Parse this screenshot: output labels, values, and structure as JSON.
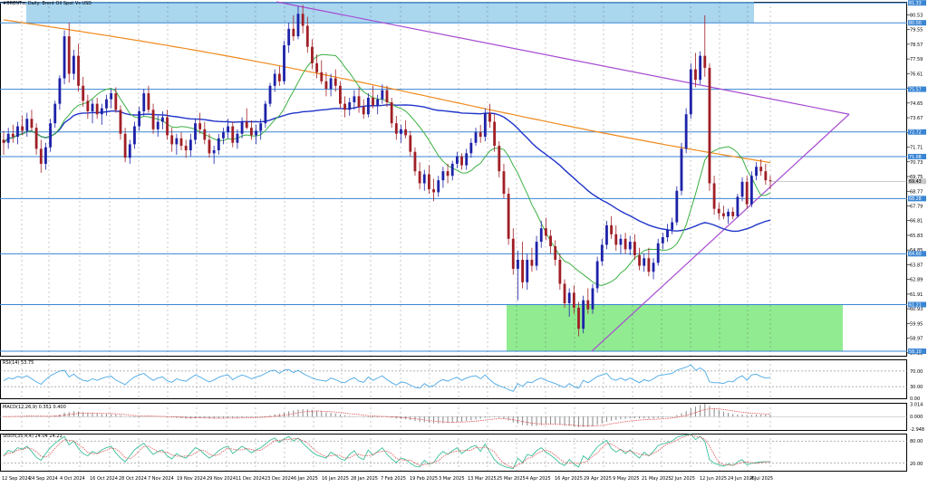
{
  "chart_data": {
    "type": "candlestick",
    "title": "#BRENT.s, Daily: Brent Oil Spot Vs USD",
    "colors": {
      "up": "#1d22a8",
      "down": "#a01f26",
      "ma_fast": "#3cb043",
      "ma_slow": "#1f35c9",
      "ma_200": "#f08a1c",
      "trendline": "#a74bd1",
      "level": "#3a86d4",
      "zone_top": "#8ec8e8",
      "zone_bottom": "#7ee77e",
      "rsi": "#4aa8e6",
      "macd_signal": "#e05050",
      "stoch_main": "#3cbf9c",
      "stoch_signal": "#e05050"
    },
    "x_labels": [
      "12 Sep 2024",
      "24 Sep 2024",
      "4 Oct 2024",
      "16 Oct 2024",
      "28 Oct 2024",
      "7 Nov 2024",
      "19 Nov 2024",
      "29 Nov 2024",
      "11 Dec 2024",
      "23 Dec 2024",
      "6 Jan 2025",
      "16 Jan 2025",
      "28 Jan 2025",
      "7 Feb 2025",
      "19 Feb 2025",
      "3 Mar 2025",
      "13 Mar 2025",
      "25 Mar 2025",
      "4 Apr 2025",
      "16 Apr 2025",
      "29 Apr 2025",
      "9 May 2025",
      "21 May 2025",
      "2 Jun 2025",
      "12 Jun 2025",
      "24 Jun 2025",
      "4 Jul 2025"
    ],
    "y_ticks": [
      "80.53",
      "79.55",
      "78.57",
      "77.59",
      "76.61",
      "75.63",
      "74.65",
      "73.67",
      "72.69",
      "71.71",
      "70.73",
      "69.75",
      "68.77",
      "67.79",
      "66.81",
      "65.83",
      "64.85",
      "63.87",
      "62.89",
      "61.91",
      "60.93",
      "59.95",
      "58.97",
      "57.99"
    ],
    "y_range": [
      57.8,
      81.4
    ],
    "levels": [
      {
        "value": "81.33",
        "price": 81.33
      },
      {
        "value": "80.00",
        "price": 80.0
      },
      {
        "value": "75.57",
        "price": 75.57
      },
      {
        "value": "72.72",
        "price": 72.72
      },
      {
        "value": "71.08",
        "price": 71.08
      },
      {
        "value": "68.28",
        "price": 68.28
      },
      {
        "value": "64.60",
        "price": 64.6
      },
      {
        "value": "61.21",
        "price": 61.21
      },
      {
        "value": "58.10",
        "price": 58.1
      }
    ],
    "current_price": {
      "value": "69.43",
      "price": 69.43
    },
    "zones": [
      {
        "name": "resistance-zone",
        "from": 80.0,
        "to": 81.4,
        "start_date": "23 Sep 2024",
        "end_date": "18 Jul 2025"
      },
      {
        "name": "support-zone",
        "from": 58.1,
        "to": 61.21,
        "start_date": "1 Apr 2025",
        "end_date": "18 Jul 2025"
      }
    ],
    "candles": [
      [
        72.2,
        72.8,
        71.2,
        72.0
      ],
      [
        72.0,
        73.0,
        71.6,
        72.6
      ],
      [
        72.6,
        73.2,
        72.0,
        72.4
      ],
      [
        72.4,
        73.4,
        71.9,
        73.1
      ],
      [
        73.1,
        73.8,
        72.5,
        72.8
      ],
      [
        72.8,
        74.0,
        72.4,
        73.6
      ],
      [
        73.6,
        74.2,
        72.8,
        73.0
      ],
      [
        73.0,
        73.3,
        71.2,
        71.6
      ],
      [
        71.6,
        72.2,
        70.0,
        70.6
      ],
      [
        70.6,
        72.0,
        70.2,
        71.7
      ],
      [
        71.7,
        73.6,
        71.4,
        73.3
      ],
      [
        73.3,
        74.8,
        73.0,
        74.6
      ],
      [
        74.6,
        76.5,
        74.2,
        76.3
      ],
      [
        76.3,
        79.5,
        75.9,
        79.1
      ],
      [
        79.1,
        80.0,
        76.0,
        76.6
      ],
      [
        76.6,
        78.2,
        76.2,
        77.8
      ],
      [
        77.8,
        78.6,
        75.4,
        75.8
      ],
      [
        75.8,
        76.4,
        74.4,
        74.8
      ],
      [
        74.8,
        75.2,
        73.6,
        74.1
      ],
      [
        74.1,
        74.9,
        73.3,
        74.6
      ],
      [
        74.6,
        75.0,
        73.6,
        73.9
      ],
      [
        73.9,
        74.6,
        73.2,
        74.3
      ],
      [
        74.3,
        75.2,
        73.8,
        74.9
      ],
      [
        74.9,
        75.6,
        74.3,
        75.3
      ],
      [
        75.3,
        75.7,
        74.0,
        74.2
      ],
      [
        74.2,
        74.5,
        72.2,
        72.6
      ],
      [
        72.6,
        73.0,
        70.7,
        71.0
      ],
      [
        71.0,
        72.2,
        70.6,
        71.9
      ],
      [
        71.9,
        73.4,
        71.6,
        73.1
      ],
      [
        73.1,
        74.4,
        72.8,
        74.1
      ],
      [
        74.1,
        75.6,
        73.8,
        75.3
      ],
      [
        75.3,
        75.8,
        74.0,
        74.2
      ],
      [
        74.2,
        74.6,
        72.6,
        72.9
      ],
      [
        72.9,
        73.8,
        72.4,
        73.4
      ],
      [
        73.4,
        74.1,
        72.9,
        73.7
      ],
      [
        73.7,
        74.2,
        72.2,
        72.5
      ],
      [
        72.5,
        73.0,
        71.4,
        71.9
      ],
      [
        71.9,
        72.6,
        71.2,
        72.3
      ],
      [
        72.3,
        72.7,
        71.5,
        71.8
      ],
      [
        71.8,
        72.2,
        71.0,
        71.5
      ],
      [
        71.5,
        72.6,
        71.1,
        72.2
      ],
      [
        72.2,
        73.6,
        71.9,
        73.3
      ],
      [
        73.3,
        74.0,
        72.6,
        72.9
      ],
      [
        72.9,
        73.4,
        71.9,
        72.2
      ],
      [
        72.2,
        72.6,
        71.0,
        71.3
      ],
      [
        71.3,
        71.8,
        70.6,
        71.5
      ],
      [
        71.5,
        72.6,
        71.2,
        72.3
      ],
      [
        72.3,
        73.0,
        71.9,
        72.7
      ],
      [
        72.7,
        73.6,
        72.3,
        73.1
      ],
      [
        73.1,
        73.4,
        71.7,
        72.0
      ],
      [
        72.0,
        72.9,
        71.6,
        72.6
      ],
      [
        72.6,
        73.7,
        72.3,
        73.4
      ],
      [
        73.4,
        74.3,
        72.9,
        73.0
      ],
      [
        73.0,
        73.5,
        72.2,
        72.5
      ],
      [
        72.5,
        73.2,
        71.9,
        72.8
      ],
      [
        72.8,
        73.6,
        72.2,
        73.3
      ],
      [
        73.3,
        74.8,
        73.0,
        74.6
      ],
      [
        74.6,
        76.0,
        74.4,
        75.8
      ],
      [
        75.8,
        76.9,
        75.4,
        76.6
      ],
      [
        76.6,
        77.1,
        75.8,
        76.1
      ],
      [
        76.1,
        78.8,
        75.9,
        78.5
      ],
      [
        78.5,
        80.0,
        78.0,
        79.6
      ],
      [
        79.6,
        80.5,
        78.8,
        79.1
      ],
      [
        79.1,
        81.1,
        78.9,
        80.6
      ],
      [
        80.6,
        81.2,
        79.3,
        79.8
      ],
      [
        79.8,
        80.4,
        78.0,
        78.4
      ],
      [
        78.4,
        78.9,
        76.9,
        77.3
      ],
      [
        77.3,
        77.9,
        76.3,
        76.7
      ],
      [
        76.7,
        77.5,
        75.9,
        76.1
      ],
      [
        76.1,
        76.7,
        75.1,
        75.6
      ],
      [
        75.6,
        76.6,
        75.1,
        76.3
      ],
      [
        76.3,
        76.9,
        75.4,
        75.8
      ],
      [
        75.8,
        76.1,
        74.3,
        74.6
      ],
      [
        74.6,
        75.1,
        73.7,
        74.2
      ],
      [
        74.2,
        75.0,
        73.8,
        74.7
      ],
      [
        74.7,
        75.5,
        74.2,
        75.1
      ],
      [
        75.1,
        75.7,
        74.0,
        74.4
      ],
      [
        74.4,
        74.9,
        73.6,
        73.9
      ],
      [
        73.9,
        75.3,
        73.7,
        75.0
      ],
      [
        75.0,
        75.8,
        74.3,
        74.5
      ],
      [
        74.5,
        75.2,
        73.9,
        74.9
      ],
      [
        74.9,
        75.9,
        74.6,
        75.5
      ],
      [
        75.5,
        75.8,
        74.4,
        74.7
      ],
      [
        74.7,
        75.0,
        73.0,
        73.3
      ],
      [
        73.3,
        73.8,
        72.2,
        72.6
      ],
      [
        72.6,
        73.2,
        72.0,
        72.9
      ],
      [
        72.9,
        73.5,
        72.3,
        72.5
      ],
      [
        72.5,
        72.8,
        71.1,
        71.4
      ],
      [
        71.4,
        71.7,
        69.8,
        70.1
      ],
      [
        70.1,
        70.7,
        68.9,
        69.3
      ],
      [
        69.3,
        70.2,
        68.8,
        69.9
      ],
      [
        69.9,
        70.5,
        68.6,
        68.9
      ],
      [
        68.9,
        69.6,
        68.1,
        68.7
      ],
      [
        68.7,
        69.8,
        68.4,
        69.5
      ],
      [
        69.5,
        70.4,
        69.0,
        70.1
      ],
      [
        70.1,
        70.6,
        69.3,
        69.8
      ],
      [
        69.8,
        70.8,
        69.5,
        70.6
      ],
      [
        70.6,
        71.4,
        70.3,
        71.1
      ],
      [
        71.1,
        71.3,
        70.2,
        70.5
      ],
      [
        70.5,
        71.6,
        70.2,
        71.3
      ],
      [
        71.3,
        72.3,
        71.0,
        72.0
      ],
      [
        72.0,
        73.0,
        71.8,
        72.7
      ],
      [
        72.7,
        73.2,
        72.0,
        72.4
      ],
      [
        72.4,
        74.3,
        72.1,
        74.0
      ],
      [
        74.0,
        74.6,
        73.0,
        73.4
      ],
      [
        73.4,
        73.9,
        71.4,
        71.8
      ],
      [
        71.8,
        72.1,
        69.7,
        70.1
      ],
      [
        70.1,
        70.6,
        68.3,
        68.6
      ],
      [
        68.6,
        69.0,
        65.2,
        65.6
      ],
      [
        65.6,
        66.3,
        63.2,
        63.6
      ],
      [
        63.6,
        64.8,
        61.5,
        64.2
      ],
      [
        64.2,
        65.4,
        62.3,
        62.7
      ],
      [
        62.7,
        64.6,
        62.2,
        64.2
      ],
      [
        64.2,
        65.0,
        63.4,
        63.8
      ],
      [
        63.8,
        65.8,
        63.5,
        65.4
      ],
      [
        65.4,
        66.8,
        65.0,
        66.3
      ],
      [
        66.3,
        67.0,
        65.5,
        65.8
      ],
      [
        65.8,
        66.2,
        64.6,
        65.1
      ],
      [
        65.1,
        65.5,
        63.8,
        64.2
      ],
      [
        64.2,
        64.6,
        62.2,
        62.6
      ],
      [
        62.6,
        62.9,
        61.0,
        61.3
      ],
      [
        61.3,
        62.3,
        60.4,
        62.0
      ],
      [
        62.0,
        62.5,
        60.6,
        61.0
      ],
      [
        61.0,
        61.4,
        59.1,
        59.6
      ],
      [
        59.6,
        61.8,
        59.3,
        61.5
      ],
      [
        61.5,
        62.3,
        60.6,
        60.9
      ],
      [
        60.9,
        62.6,
        60.6,
        62.3
      ],
      [
        62.3,
        64.4,
        62.0,
        64.1
      ],
      [
        64.1,
        65.6,
        63.8,
        65.2
      ],
      [
        65.2,
        66.8,
        64.9,
        66.5
      ],
      [
        66.5,
        67.1,
        65.6,
        65.9
      ],
      [
        65.9,
        66.5,
        64.8,
        65.2
      ],
      [
        65.2,
        65.9,
        64.6,
        65.6
      ],
      [
        65.6,
        66.0,
        64.6,
        64.9
      ],
      [
        64.9,
        65.8,
        64.5,
        65.4
      ],
      [
        65.4,
        65.9,
        64.2,
        64.5
      ],
      [
        64.5,
        65.0,
        63.5,
        63.8
      ],
      [
        63.8,
        64.6,
        63.4,
        64.3
      ],
      [
        64.3,
        65.0,
        63.1,
        63.4
      ],
      [
        63.4,
        64.3,
        62.9,
        64.0
      ],
      [
        64.0,
        65.6,
        63.8,
        65.3
      ],
      [
        65.3,
        66.0,
        64.9,
        65.7
      ],
      [
        65.7,
        66.6,
        65.4,
        66.2
      ],
      [
        66.2,
        67.0,
        65.9,
        66.7
      ],
      [
        66.7,
        69.1,
        66.5,
        68.8
      ],
      [
        68.8,
        72.0,
        68.5,
        71.6
      ],
      [
        71.6,
        74.3,
        71.3,
        73.9
      ],
      [
        73.9,
        77.3,
        73.6,
        76.9
      ],
      [
        76.9,
        78.0,
        75.7,
        76.2
      ],
      [
        76.2,
        78.1,
        75.9,
        77.8
      ],
      [
        77.8,
        80.5,
        76.4,
        77.0
      ],
      [
        77.0,
        77.3,
        68.8,
        69.3
      ],
      [
        69.3,
        69.8,
        67.2,
        67.6
      ],
      [
        67.6,
        68.0,
        66.9,
        67.3
      ],
      [
        67.3,
        67.8,
        66.9,
        67.1
      ],
      [
        67.1,
        67.6,
        66.6,
        67.4
      ],
      [
        67.4,
        67.7,
        66.9,
        67.1
      ],
      [
        67.1,
        68.6,
        67.0,
        68.4
      ],
      [
        68.4,
        69.7,
        68.1,
        69.4
      ],
      [
        69.4,
        69.8,
        67.6,
        67.9
      ],
      [
        67.9,
        70.1,
        67.7,
        69.8
      ],
      [
        69.8,
        70.7,
        69.5,
        70.4
      ],
      [
        70.4,
        70.9,
        69.8,
        70.1
      ],
      [
        70.1,
        70.6,
        69.2,
        69.5
      ],
      [
        69.5,
        69.8,
        68.9,
        69.43
      ]
    ],
    "rsi": {
      "label": "RSI(14) 53.75",
      "ticks": [
        "70.00",
        "30.00",
        "0.00"
      ],
      "range": [
        0,
        100
      ],
      "values": [
        45,
        52,
        50,
        56,
        53,
        58,
        50,
        42,
        36,
        48,
        58,
        64,
        70,
        72,
        55,
        62,
        52,
        46,
        44,
        50,
        46,
        51,
        55,
        57,
        47,
        41,
        35,
        46,
        55,
        60,
        64,
        54,
        46,
        52,
        55,
        45,
        41,
        50,
        46,
        44,
        52,
        60,
        55,
        48,
        42,
        47,
        54,
        58,
        60,
        48,
        55,
        60,
        56,
        50,
        55,
        58,
        64,
        70,
        72,
        64,
        72,
        74,
        66,
        72,
        64,
        58,
        52,
        48,
        46,
        44,
        52,
        48,
        42,
        40,
        48,
        53,
        44,
        41,
        55,
        46,
        52,
        58,
        48,
        40,
        34,
        42,
        40,
        34,
        28,
        26,
        38,
        30,
        32,
        42,
        48,
        44,
        50,
        54,
        46,
        52,
        56,
        58,
        50,
        60,
        48,
        38,
        32,
        28,
        22,
        18,
        38,
        30,
        42,
        40,
        48,
        52,
        46,
        42,
        38,
        32,
        28,
        38,
        30,
        26,
        46,
        40,
        48,
        56,
        60,
        64,
        50,
        46,
        52,
        46,
        52,
        46,
        40,
        48,
        44,
        50,
        58,
        60,
        62,
        64,
        72,
        76,
        80,
        86,
        72,
        78,
        70,
        42,
        40,
        40,
        38,
        44,
        42,
        52,
        58,
        46,
        60,
        62,
        56,
        52,
        53.75
      ]
    },
    "macd": {
      "label": "MACD(12,26,9) 0.351 0.400",
      "ticks": [
        "3.014",
        "0.000",
        "-2.948"
      ],
      "range": [
        -3.2,
        3.3
      ]
    },
    "stoch": {
      "label": "Stoch(35,4,4) 24.04 24.21",
      "ticks": [
        "80.00",
        "20.00"
      ],
      "range": [
        0,
        100
      ],
      "main": [
        40,
        55,
        50,
        62,
        58,
        66,
        52,
        36,
        28,
        46,
        62,
        74,
        84,
        92,
        70,
        80,
        60,
        46,
        40,
        52,
        46,
        56,
        62,
        66,
        48,
        34,
        24,
        40,
        56,
        66,
        74,
        58,
        44,
        52,
        56,
        40,
        32,
        46,
        38,
        34,
        48,
        62,
        56,
        44,
        34,
        42,
        54,
        62,
        66,
        46,
        56,
        66,
        58,
        48,
        56,
        62,
        72,
        82,
        88,
        76,
        86,
        92,
        80,
        88,
        74,
        62,
        50,
        42,
        38,
        34,
        50,
        42,
        32,
        28,
        44,
        54,
        36,
        30,
        56,
        42,
        52,
        62,
        44,
        32,
        22,
        34,
        30,
        20,
        12,
        10,
        28,
        18,
        22,
        40,
        52,
        44,
        54,
        62,
        46,
        56,
        64,
        68,
        52,
        72,
        50,
        30,
        18,
        12,
        8,
        6,
        34,
        22,
        44,
        40,
        54,
        62,
        50,
        42,
        32,
        20,
        14,
        30,
        18,
        10,
        40,
        30,
        48,
        64,
        74,
        82,
        60,
        50,
        58,
        46,
        56,
        44,
        34,
        50,
        40,
        52,
        68,
        72,
        76,
        80,
        90,
        94,
        96,
        98,
        84,
        92,
        78,
        30,
        20,
        16,
        12,
        18,
        14,
        24,
        30,
        16,
        20,
        22,
        24,
        24.04,
        24.04
      ],
      "signal_lag": 3
    }
  }
}
